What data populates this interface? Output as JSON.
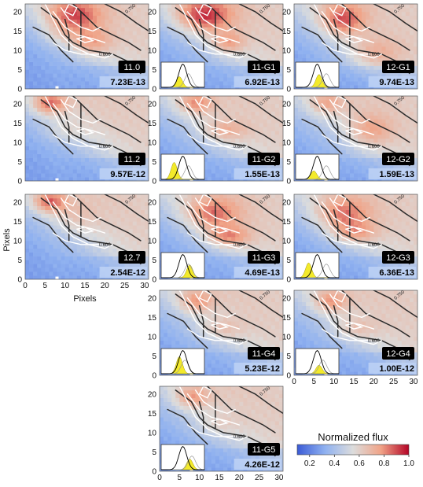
{
  "chart_data": {
    "type": "heatmap",
    "xlabel": "Pixels",
    "ylabel": "Pixels",
    "xlim": [
      0,
      31
    ],
    "ylim": [
      0,
      22
    ],
    "xticks": [
      0,
      5,
      10,
      15,
      20,
      25,
      30
    ],
    "yticks": [
      0,
      5,
      10,
      15,
      20
    ],
    "contour_labels": [
      "0.750",
      "0.600"
    ],
    "colorbar": {
      "label": "Normalized flux",
      "range": [
        0.1,
        1.0
      ],
      "ticks": [
        "0.2",
        "0.4",
        "0.6",
        "0.8",
        "1.0"
      ],
      "colors": [
        "#3b5bd6",
        "#8fb1f0",
        "#dcdcdc",
        "#f0a387",
        "#b40426"
      ]
    },
    "panels": [
      {
        "label": "11.0",
        "value": "7.23E-13",
        "row": 0,
        "col": 0,
        "inset": false
      },
      {
        "label": "11-G1",
        "value": "6.92E-13",
        "row": 0,
        "col": 1,
        "inset": true
      },
      {
        "label": "12-G1",
        "value": "9.74E-13",
        "row": 0,
        "col": 2,
        "inset": true
      },
      {
        "label": "11.2",
        "value": "9.57E-12",
        "row": 1,
        "col": 0,
        "inset": false
      },
      {
        "label": "11-G2",
        "value": "1.55E-13",
        "row": 1,
        "col": 1,
        "inset": true
      },
      {
        "label": "12-G2",
        "value": "1.59E-13",
        "row": 1,
        "col": 2,
        "inset": true
      },
      {
        "label": "12.7",
        "value": "2.54E-12",
        "row": 2,
        "col": 0,
        "inset": false
      },
      {
        "label": "11-G3",
        "value": "4.69E-13",
        "row": 2,
        "col": 1,
        "inset": true
      },
      {
        "label": "12-G3",
        "value": "6.36E-13",
        "row": 2,
        "col": 2,
        "inset": true
      },
      {
        "label": "11-G4",
        "value": "5.23E-12",
        "row": 3,
        "col": 1,
        "inset": true
      },
      {
        "label": "12-G4",
        "value": "1.00E-12",
        "row": 3,
        "col": 2,
        "inset": true
      },
      {
        "label": "11-G5",
        "value": "4.26E-12",
        "row": 4,
        "col": 1,
        "inset": true
      }
    ]
  }
}
